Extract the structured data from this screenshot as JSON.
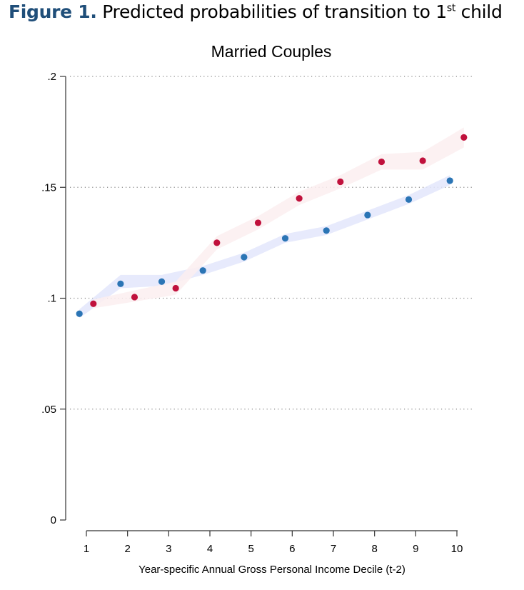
{
  "heading": {
    "label": "Figure 1.",
    "text_before_sup": "Predicted probabilities of transition to 1",
    "sup": "st",
    "text_after_sup": " child"
  },
  "chart_data": {
    "type": "scatter",
    "title": "Married Couples",
    "xlabel": "Year-specific Annual Gross Personal Income Decile (t-2)",
    "ylabel": "",
    "xlim": [
      0.9,
      10.1
    ],
    "ylim": [
      0,
      0.2
    ],
    "x_ticks": [
      1,
      2,
      3,
      4,
      5,
      6,
      7,
      8,
      9,
      10
    ],
    "x_tick_labels": [
      "1",
      "2",
      "3",
      "4",
      "5",
      "6",
      "7",
      "8",
      "9",
      "10"
    ],
    "y_ticks": [
      0,
      0.05,
      0.1,
      0.15,
      0.2
    ],
    "y_tick_labels": [
      "0",
      ".05",
      ".1",
      ".15",
      ".2"
    ],
    "grid": "horizontal dotted",
    "series": [
      {
        "color": "#2b75b5",
        "band_color": "#e3e6fb",
        "x": [
          0.83,
          1.83,
          2.83,
          3.83,
          4.83,
          5.83,
          6.83,
          7.83,
          8.83,
          9.83
        ],
        "values": [
          0.093,
          0.1065,
          0.1075,
          0.1125,
          0.1185,
          0.127,
          0.1305,
          0.1375,
          0.1445,
          0.153
        ],
        "ci_low": [
          0.091,
          0.1045,
          0.1055,
          0.1105,
          0.1165,
          0.125,
          0.1285,
          0.1355,
          0.1425,
          0.151
        ],
        "ci_high": [
          0.095,
          0.1105,
          0.1105,
          0.1145,
          0.1205,
          0.129,
          0.1325,
          0.1395,
          0.1465,
          0.1555
        ]
      },
      {
        "color": "#c0113c",
        "band_color": "#fbeef0",
        "x": [
          1.17,
          2.17,
          3.17,
          4.17,
          5.17,
          6.17,
          7.17,
          8.17,
          9.17,
          10.17
        ],
        "values": [
          0.0975,
          0.1005,
          0.1045,
          0.125,
          0.134,
          0.145,
          0.1525,
          0.1615,
          0.162,
          0.1725
        ],
        "ci_low": [
          0.0955,
          0.0985,
          0.1015,
          0.122,
          0.131,
          0.142,
          0.1495,
          0.158,
          0.158,
          0.168
        ],
        "ci_high": [
          0.0995,
          0.1035,
          0.1075,
          0.128,
          0.137,
          0.148,
          0.1555,
          0.165,
          0.166,
          0.177
        ]
      }
    ]
  }
}
